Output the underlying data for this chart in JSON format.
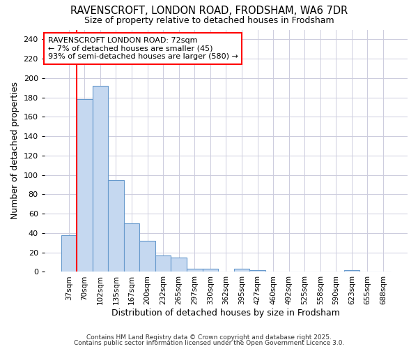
{
  "title_line1": "RAVENSCROFT, LONDON ROAD, FRODSHAM, WA6 7DR",
  "title_line2": "Size of property relative to detached houses in Frodsham",
  "xlabel": "Distribution of detached houses by size in Frodsham",
  "ylabel": "Number of detached properties",
  "annotation_title": "RAVENSCROFT LONDON ROAD: 72sqm",
  "annotation_line2": "← 7% of detached houses are smaller (45)",
  "annotation_line3": "93% of semi-detached houses are larger (580) →",
  "bin_labels": [
    "37sqm",
    "70sqm",
    "102sqm",
    "135sqm",
    "167sqm",
    "200sqm",
    "232sqm",
    "265sqm",
    "297sqm",
    "330sqm",
    "362sqm",
    "395sqm",
    "427sqm",
    "460sqm",
    "492sqm",
    "525sqm",
    "558sqm",
    "590sqm",
    "623sqm",
    "655sqm",
    "688sqm"
  ],
  "bar_values": [
    38,
    178,
    192,
    95,
    50,
    32,
    17,
    15,
    3,
    3,
    0,
    3,
    2,
    0,
    0,
    0,
    0,
    0,
    2,
    0,
    0
  ],
  "bar_color": "#c5d8f0",
  "bar_edge_color": "#6699cc",
  "red_line_index": 1,
  "ylim": [
    0,
    250
  ],
  "yticks": [
    0,
    20,
    40,
    60,
    80,
    100,
    120,
    140,
    160,
    180,
    200,
    220,
    240
  ],
  "annotation_box_color": "white",
  "annotation_box_edge": "red",
  "red_line_color": "red",
  "background_color": "#ffffff",
  "grid_color": "#ccccdd",
  "footnote1": "Contains HM Land Registry data © Crown copyright and database right 2025.",
  "footnote2": "Contains public sector information licensed under the Open Government Licence 3.0."
}
